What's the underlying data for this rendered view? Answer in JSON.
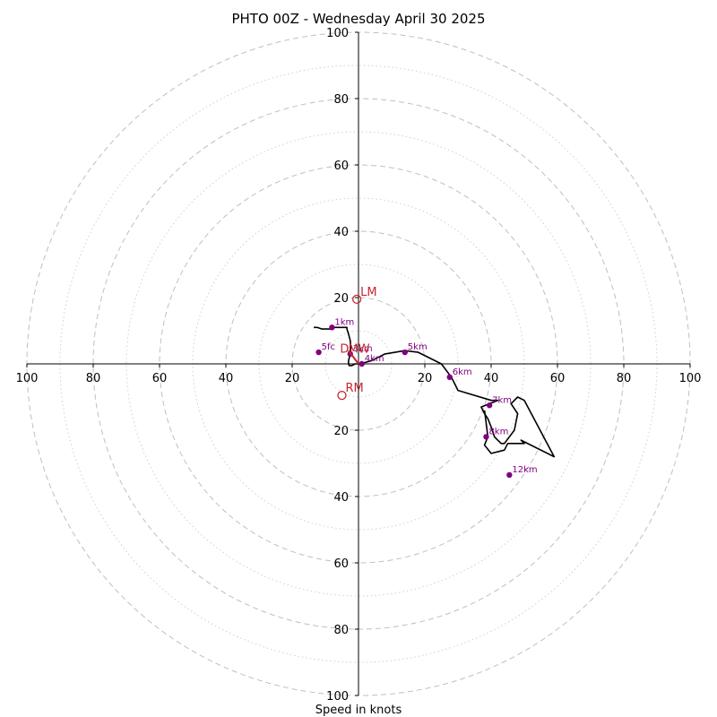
{
  "chart_data": {
    "type": "scatter",
    "title": "PHTO 00Z - Wednesday April 30 2025",
    "xlabel": "Speed in knots",
    "ylabel": "",
    "xlim": [
      -100,
      100
    ],
    "ylim": [
      -100,
      100
    ],
    "rings_major": [
      20,
      40,
      60,
      80,
      100
    ],
    "rings_minor": [
      10,
      30,
      50,
      70,
      90
    ],
    "x_tick_labels": [
      "100",
      "80",
      "60",
      "40",
      "20",
      "20",
      "40",
      "60",
      "80",
      "100"
    ],
    "y_tick_labels": [
      "100",
      "80",
      "60",
      "40",
      "20",
      "20",
      "40",
      "60",
      "80",
      "100"
    ],
    "x_tick_values": [
      -100,
      -80,
      -60,
      -40,
      -20,
      20,
      40,
      60,
      80,
      100
    ],
    "y_tick_values": [
      100,
      80,
      60,
      40,
      20,
      -20,
      -40,
      -60,
      -80,
      -100
    ],
    "colors": {
      "trace": "#000000",
      "height_markers": "#800080",
      "motion_markers": "#c1272d",
      "ring": "#bfbfbf",
      "axis": "#000000"
    },
    "trace": {
      "u": [
        -13.5,
        -12.5,
        -11,
        -8.5,
        -7.5,
        -3.5,
        -3.5,
        -3,
        -2.5,
        -2.3,
        -2.5,
        -3,
        -3,
        -2.8,
        -2,
        -1,
        0.5,
        4,
        8,
        14,
        18,
        25,
        28,
        30,
        40,
        42,
        37,
        38,
        39,
        40,
        41,
        43,
        44,
        47,
        48,
        46,
        48,
        50,
        59,
        49,
        50,
        45,
        44,
        40,
        38,
        39,
        38.5,
        38
      ],
      "v": [
        11,
        11,
        10.5,
        10.5,
        11,
        11,
        10.5,
        9,
        7,
        5,
        3,
        1,
        0,
        -0.5,
        -0.5,
        0,
        0,
        1,
        3,
        4,
        3.5,
        0,
        -4,
        -8,
        -11,
        -11,
        -13,
        -15,
        -16.5,
        -19,
        -22,
        -24,
        -24,
        -20,
        -15,
        -12,
        -10,
        -11,
        -28,
        -23,
        -24,
        -24,
        -26,
        -27,
        -24.5,
        -22,
        -18,
        -14
      ]
    },
    "height_points": [
      {
        "label": "1km",
        "u": -8,
        "v": 11
      },
      {
        "label": "5fc",
        "u": -12,
        "v": 3.5
      },
      {
        "label": "3km",
        "u": -2.5,
        "v": 3
      },
      {
        "label": "4km",
        "u": 1,
        "v": 0
      },
      {
        "label": "5km",
        "u": 14,
        "v": 3.5
      },
      {
        "label": "6km",
        "u": 27.5,
        "v": -4
      },
      {
        "label": "7km",
        "u": 39.5,
        "v": -12.5
      },
      {
        "label": "8km",
        "u": 38.5,
        "v": -22
      },
      {
        "label": "12km",
        "u": 45.5,
        "v": -33.5
      }
    ],
    "storm_motion": {
      "vector": {
        "from": [
          0,
          0
        ],
        "to": [
          -3,
          4
        ]
      },
      "points": [
        {
          "label": "LM",
          "u": -0.5,
          "v": 19.5,
          "shape": "circle"
        },
        {
          "label": "RM",
          "u": -5,
          "v": -9.5,
          "shape": "circle"
        },
        {
          "label": "MW",
          "u": -2,
          "v": 4.5,
          "shape": "none"
        },
        {
          "label": "D",
          "u": -4.5,
          "v": 4.5,
          "shape": "none"
        }
      ]
    },
    "grid": true,
    "legend": "none"
  }
}
